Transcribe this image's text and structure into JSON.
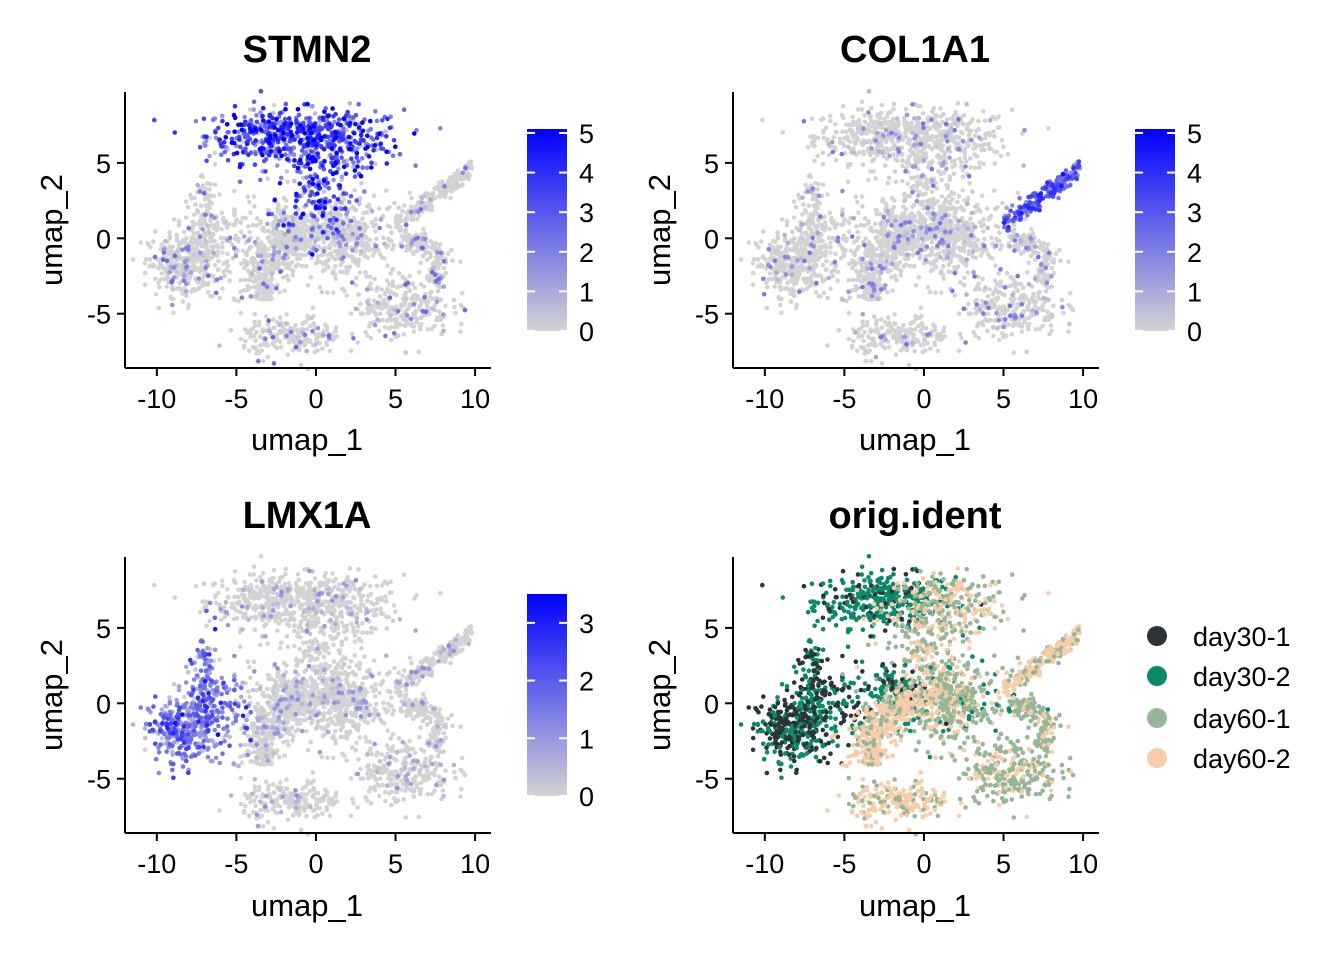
{
  "chart_data": [
    {
      "type": "scatter",
      "title": "STMN2",
      "xlabel": "umap_1",
      "ylabel": "umap_2",
      "xlim": [
        -12,
        11
      ],
      "ylim": [
        -8.6,
        9.7
      ],
      "xticks": [
        -10,
        -5,
        0,
        5,
        10
      ],
      "yticks": [
        -5,
        0,
        5
      ],
      "xtick_labels": [
        "-10",
        "-5",
        "0",
        "5",
        "10"
      ],
      "ytick_labels": [
        "-5",
        "0",
        "5"
      ],
      "colorbar": {
        "range": [
          0,
          5.1
        ],
        "ticks": [
          0,
          1,
          2,
          3,
          4,
          5
        ],
        "tick_labels": [
          "0",
          "1",
          "2",
          "3",
          "4",
          "5"
        ],
        "low_color": "#d3d3d3",
        "high_color": "#0000ff"
      },
      "expression": {
        "region": "top-lobe",
        "level": 4.5,
        "spread": 1.2
      }
    },
    {
      "type": "scatter",
      "title": "COL1A1",
      "xlabel": "umap_1",
      "ylabel": "umap_2",
      "xlim": [
        -12,
        11
      ],
      "ylim": [
        -8.6,
        9.7
      ],
      "xticks": [
        -10,
        -5,
        0,
        5,
        10
      ],
      "yticks": [
        -5,
        0,
        5
      ],
      "xtick_labels": [
        "-10",
        "-5",
        "0",
        "5",
        "10"
      ],
      "ytick_labels": [
        "-5",
        "0",
        "5"
      ],
      "colorbar": {
        "range": [
          0,
          5.1
        ],
        "ticks": [
          0,
          1,
          2,
          3,
          4,
          5
        ],
        "tick_labels": [
          "0",
          "1",
          "2",
          "3",
          "4",
          "5"
        ],
        "low_color": "#d3d3d3",
        "high_color": "#0000ff"
      },
      "expression": {
        "region": "right-arm",
        "level": 4.0,
        "spread": 0.4
      }
    },
    {
      "type": "scatter",
      "title": "LMX1A",
      "xlabel": "umap_1",
      "ylabel": "umap_2",
      "xlim": [
        -12,
        11
      ],
      "ylim": [
        -8.6,
        9.7
      ],
      "xticks": [
        -10,
        -5,
        0,
        5,
        10
      ],
      "yticks": [
        -5,
        0,
        5
      ],
      "xtick_labels": [
        "-10",
        "-5",
        "0",
        "5",
        "10"
      ],
      "ytick_labels": [
        "-5",
        "0",
        "5"
      ],
      "colorbar": {
        "range": [
          0,
          3.5
        ],
        "ticks": [
          0,
          1,
          2,
          3
        ],
        "tick_labels": [
          "0",
          "1",
          "2",
          "3"
        ],
        "low_color": "#d3d3d3",
        "high_color": "#0000ff"
      },
      "expression": {
        "region": "left-wing",
        "level": 2.0,
        "spread": 0.6
      }
    },
    {
      "type": "scatter",
      "title": "orig.ident",
      "xlabel": "umap_1",
      "ylabel": "umap_2",
      "xlim": [
        -12,
        11
      ],
      "ylim": [
        -8.6,
        9.7
      ],
      "xticks": [
        -10,
        -5,
        0,
        5,
        10
      ],
      "yticks": [
        -5,
        0,
        5
      ],
      "xtick_labels": [
        "-10",
        "-5",
        "0",
        "5",
        "10"
      ],
      "ytick_labels": [
        "-5",
        "0",
        "5"
      ],
      "legend": {
        "placement": "right",
        "entries": [
          {
            "name": "day30-1",
            "color": "#2b3539"
          },
          {
            "name": "day30-2",
            "color": "#0b8a6a"
          },
          {
            "name": "day60-1",
            "color": "#97b597"
          },
          {
            "name": "day60-2",
            "color": "#f6cda8"
          }
        ]
      }
    }
  ]
}
